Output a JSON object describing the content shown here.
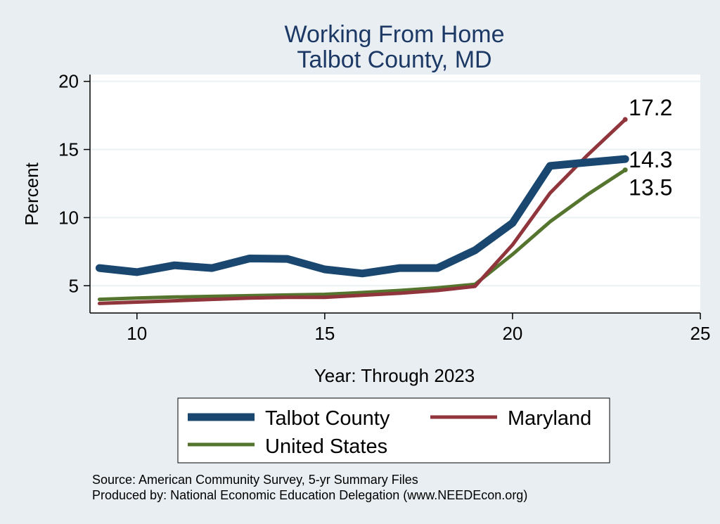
{
  "chart_data": {
    "type": "line",
    "title_lines": [
      "Working From Home",
      "Talbot County, MD"
    ],
    "xlabel": "Year: Through 2023",
    "ylabel": "Percent",
    "xlim": [
      8.75,
      25
    ],
    "ylim": [
      3,
      20.5
    ],
    "xticks": [
      10,
      15,
      20,
      25
    ],
    "yticks": [
      5,
      10,
      15,
      20
    ],
    "grid": true,
    "legend_position": "bottom",
    "x": [
      9,
      10,
      11,
      12,
      13,
      14,
      15,
      16,
      17,
      18,
      19,
      20,
      21,
      22,
      23
    ],
    "series": [
      {
        "name": "Talbot County",
        "color": "#1a476f",
        "values": [
          6.3,
          6.0,
          6.5,
          6.3,
          7.0,
          6.97,
          6.2,
          5.9,
          6.3,
          6.3,
          7.6,
          9.6,
          13.8,
          14.05,
          14.3
        ],
        "end_label": "14.3"
      },
      {
        "name": "Maryland",
        "color": "#90353b",
        "values": [
          3.7,
          3.8,
          3.9,
          4.0,
          4.1,
          4.15,
          4.15,
          4.3,
          4.45,
          4.65,
          4.95,
          8.0,
          11.8,
          14.6,
          17.2
        ],
        "end_label": "17.2"
      },
      {
        "name": "United States",
        "color": "#55752f",
        "values": [
          4.0,
          4.1,
          4.17,
          4.22,
          4.27,
          4.32,
          4.37,
          4.5,
          4.65,
          4.85,
          5.1,
          7.3,
          9.7,
          11.7,
          13.5
        ],
        "end_label": "13.5"
      }
    ]
  },
  "source_lines": [
    "Source: American Community Survey, 5-yr Summary Files",
    "Produced by: National Economic Education Delegation (www.NEEDEcon.org)"
  ]
}
